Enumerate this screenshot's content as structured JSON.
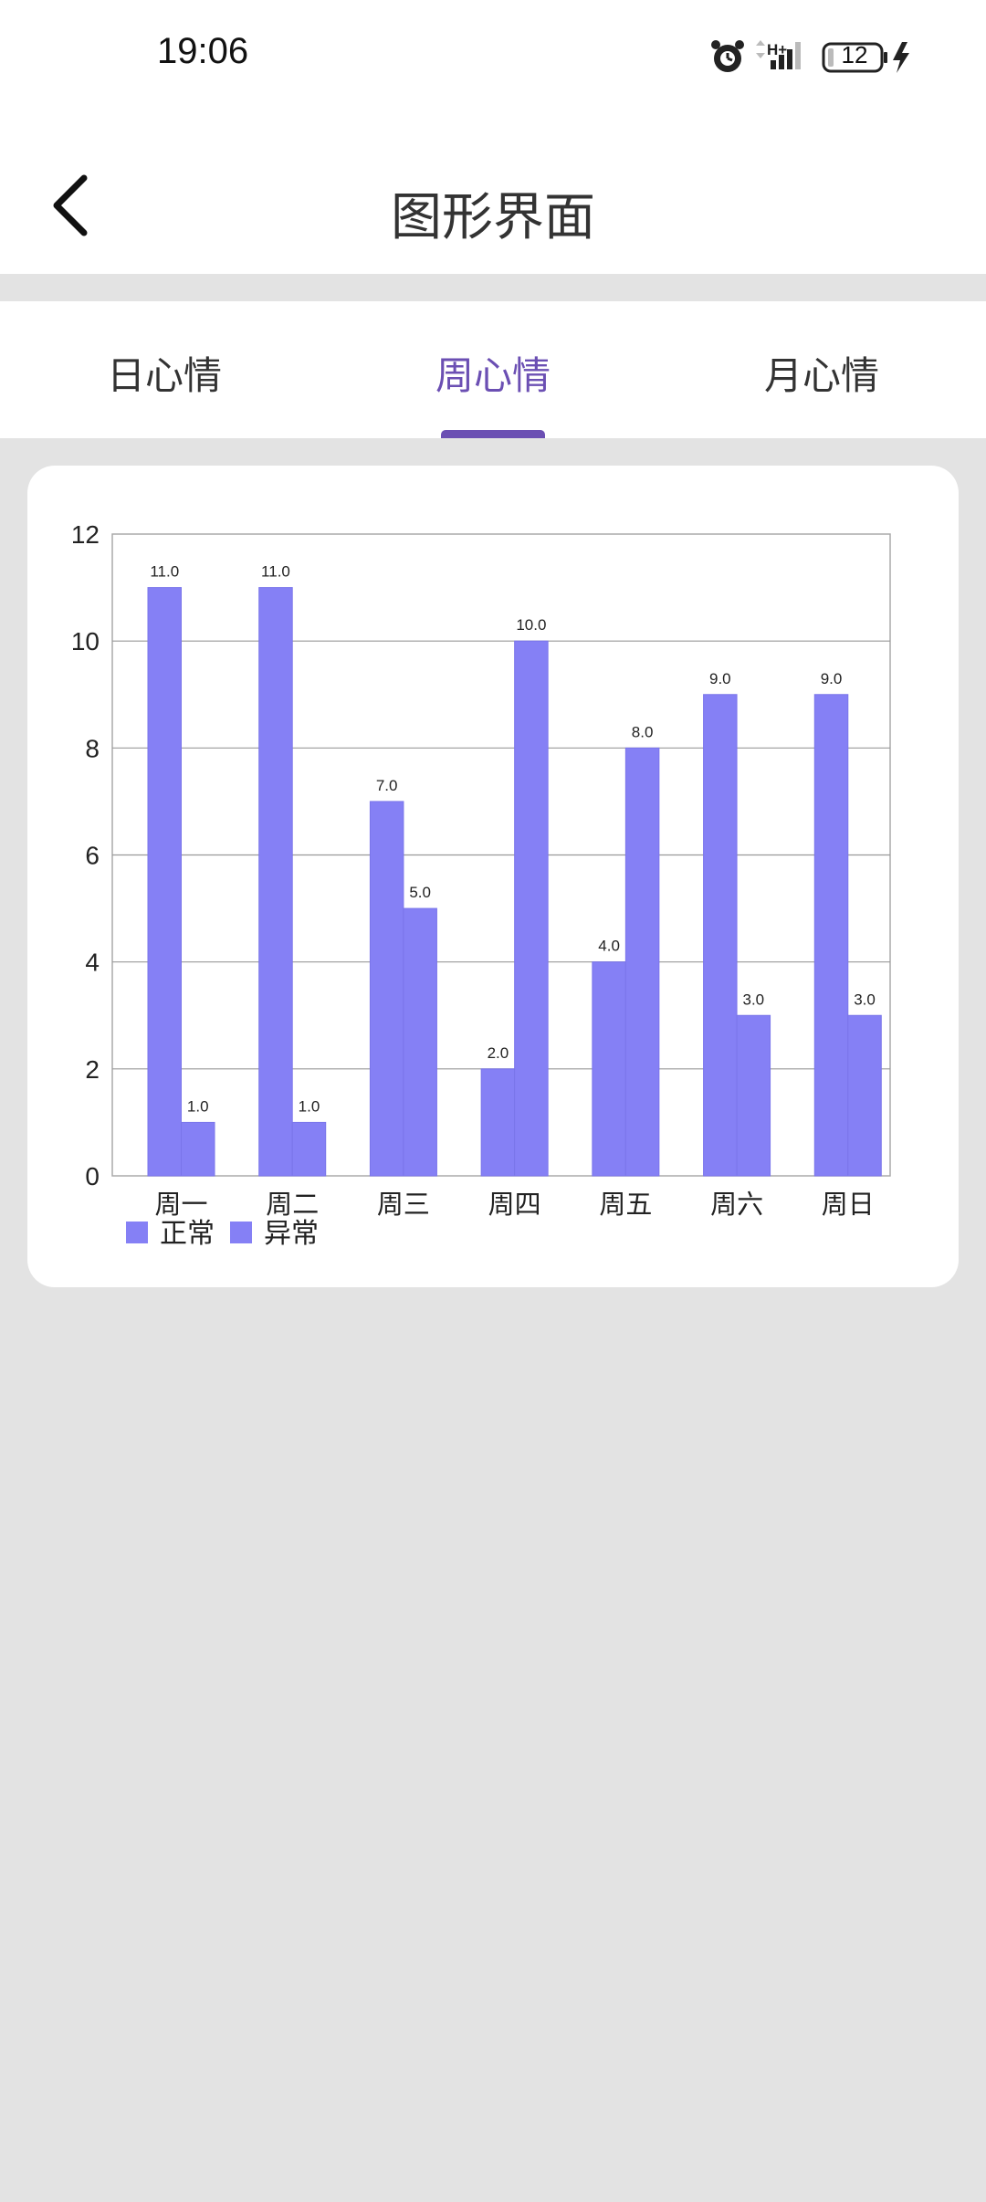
{
  "status_bar": {
    "time": "19:06",
    "battery_level": "12",
    "icons": [
      "alarm-icon",
      "signal-h-plus-icon",
      "battery-icon",
      "charging-bolt-icon"
    ]
  },
  "header": {
    "title": "图形界面",
    "back_icon": "back-arrow-icon"
  },
  "tabs": [
    {
      "label": "日心情",
      "active": false
    },
    {
      "label": "周心情",
      "active": true
    },
    {
      "label": "月心情",
      "active": false
    }
  ],
  "colors": {
    "accent": "#6b4fb3",
    "bar": "#8580f5",
    "bar_edge": "#7a75ea",
    "background": "#e3e3e3",
    "card": "#ffffff"
  },
  "chart_data": {
    "type": "bar",
    "categories": [
      "周一",
      "周二",
      "周三",
      "周四",
      "周五",
      "周六",
      "周日"
    ],
    "series": [
      {
        "name": "正常",
        "values": [
          11.0,
          11.0,
          7.0,
          2.0,
          4.0,
          9.0,
          9.0
        ],
        "labels": [
          "11.0",
          "11.0",
          "7.0",
          "2.0",
          "4.0",
          "9.0",
          "9.0"
        ]
      },
      {
        "name": "异常",
        "values": [
          1.0,
          1.0,
          5.0,
          10.0,
          8.0,
          3.0,
          3.0
        ],
        "labels": [
          "1.0",
          "1.0",
          "5.0",
          "10.0",
          "8.0",
          "3.0",
          "3.0"
        ]
      }
    ],
    "ylim": [
      0,
      12
    ],
    "yticks": [
      "0",
      "2",
      "4",
      "6",
      "8",
      "10",
      "12"
    ],
    "grid": true,
    "legend_position": "bottom-left"
  }
}
